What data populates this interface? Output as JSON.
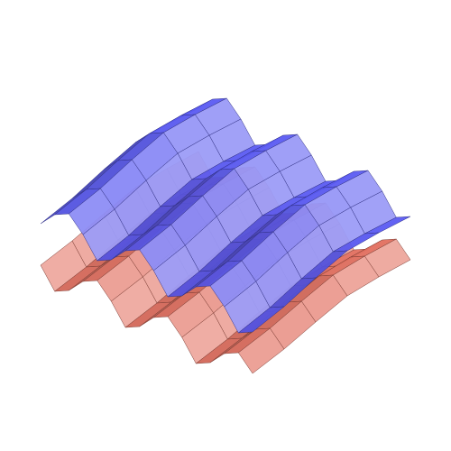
{
  "chart_data": {
    "type": "surface",
    "series": [
      {
        "color": "#5a5af2",
        "z": [
          [
            0.7,
            0.88,
            0.97,
            0.82,
            0.61,
            0.7,
            0.88,
            0.97,
            0.82,
            0.61,
            0.7,
            0.88,
            0.97,
            0.82,
            0.61,
            0.7
          ],
          [
            0.76,
            0.94,
            1.03,
            0.88,
            0.67,
            0.76,
            0.94,
            1.03,
            0.88,
            0.67,
            0.76,
            0.94,
            1.03,
            0.88,
            0.67,
            0.76
          ],
          [
            0.8,
            0.98,
            1.07,
            0.92,
            0.71,
            0.8,
            0.98,
            1.07,
            0.92,
            0.71,
            0.8,
            0.98,
            1.07,
            0.92,
            0.71,
            0.8
          ],
          [
            0.74,
            0.92,
            1.01,
            0.86,
            0.65,
            0.74,
            0.92,
            1.01,
            0.86,
            0.65,
            0.74,
            0.92,
            1.01,
            0.86,
            0.65,
            0.74
          ],
          [
            0.66,
            0.84,
            0.93,
            0.78,
            0.57,
            0.66,
            0.84,
            0.93,
            0.78,
            0.57,
            0.66,
            0.84,
            0.93,
            0.78,
            0.57,
            0.66
          ],
          [
            0.62,
            0.8,
            0.89,
            0.74,
            0.53,
            0.62,
            0.8,
            0.89,
            0.74,
            0.53,
            0.62,
            0.8,
            0.89,
            0.74,
            0.53,
            0.62
          ]
        ]
      },
      {
        "color": "#e26f5f",
        "z": [
          [
            0.22,
            0.01,
            0.1,
            0.28,
            0.37,
            0.22,
            0.01,
            0.1,
            0.28,
            0.37,
            0.22,
            0.01,
            0.1,
            0.28,
            0.37,
            0.22
          ],
          [
            0.27,
            0.06,
            0.15,
            0.33,
            0.42,
            0.27,
            0.06,
            0.15,
            0.33,
            0.42,
            0.27,
            0.06,
            0.15,
            0.33,
            0.42,
            0.27
          ],
          [
            0.3,
            0.09,
            0.18,
            0.36,
            0.45,
            0.3,
            0.09,
            0.18,
            0.36,
            0.45,
            0.3,
            0.09,
            0.18,
            0.36,
            0.45,
            0.3
          ],
          [
            0.25,
            0.04,
            0.13,
            0.31,
            0.4,
            0.25,
            0.04,
            0.13,
            0.31,
            0.4,
            0.25,
            0.04,
            0.13,
            0.31,
            0.4,
            0.25
          ],
          [
            0.19,
            -0.02,
            0.07,
            0.25,
            0.34,
            0.19,
            -0.02,
            0.07,
            0.25,
            0.34,
            0.19,
            -0.02,
            0.07,
            0.25,
            0.34,
            0.19
          ],
          [
            0.16,
            -0.05,
            0.04,
            0.22,
            0.31,
            0.16,
            -0.05,
            0.04,
            0.22,
            0.31,
            0.16,
            -0.05,
            0.04,
            0.22,
            0.31,
            0.16
          ]
        ]
      }
    ]
  }
}
